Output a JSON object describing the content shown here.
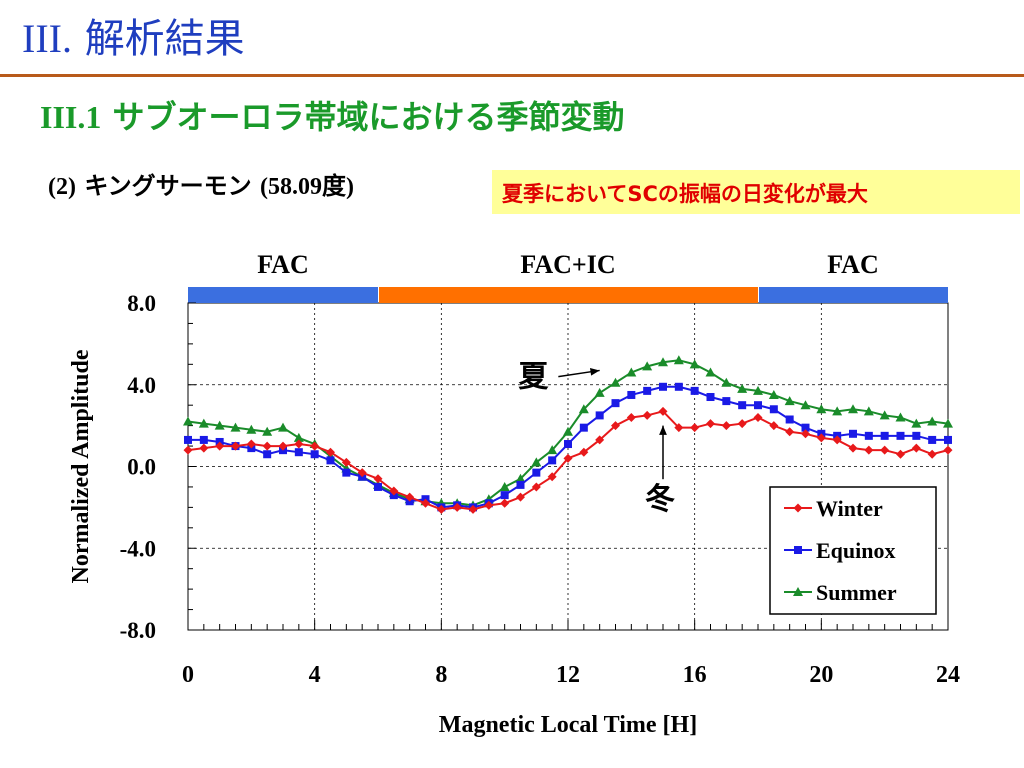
{
  "slide": {
    "title_num": "III.",
    "title_text": "解析結果",
    "subtitle_num": "III.1",
    "subtitle_text": "サブオーロラ帯域における季節変動",
    "station_prefix": "(2)",
    "station_name": "キングサーモン",
    "station_suffix": "(58.09度)",
    "highlight": "夏季においてSCの振幅の日変化が最大"
  },
  "colors": {
    "title": "#1f3ebf",
    "rule": "#b85a1a",
    "subtitle": "#1a9a2a",
    "highlight_bg": "#ffff99",
    "highlight_text": "#e00000",
    "band_fac": "#3b6fe0",
    "band_facic": "#ff7000",
    "winter": "#e8191b",
    "equinox": "#1a1ae6",
    "summer": "#1a8c2a"
  },
  "chart_data": {
    "type": "line",
    "xlabel": "Magnetic Local Time [H]",
    "ylabel": "Normalized Amplitude",
    "xlim": [
      0,
      24
    ],
    "ylim": [
      -8,
      8
    ],
    "xticks": [
      "0",
      "4",
      "8",
      "12",
      "16",
      "20",
      "24"
    ],
    "yticks": [
      "8.0",
      "4.0",
      "0.0",
      "-4.0",
      "-8.0"
    ],
    "grid": true,
    "legend_position": "bottom-right",
    "bands": [
      {
        "label": "FAC",
        "from": 0,
        "to": 6,
        "kind": "fac"
      },
      {
        "label": "FAC+IC",
        "from": 6,
        "to": 18,
        "kind": "facic"
      },
      {
        "label": "FAC",
        "from": 18,
        "to": 24,
        "kind": "fac"
      }
    ],
    "annotations": [
      {
        "text": "夏",
        "x": 11.0,
        "y": 4.4,
        "arrow_to": [
          13.0,
          4.7
        ]
      },
      {
        "text": "冬",
        "x": 15.0,
        "y": -1.6,
        "arrow_to": [
          15.0,
          2.0
        ]
      }
    ],
    "x": [
      0,
      0.5,
      1,
      1.5,
      2,
      2.5,
      3,
      3.5,
      4,
      4.5,
      5,
      5.5,
      6,
      6.5,
      7,
      7.5,
      8,
      8.5,
      9,
      9.5,
      10,
      10.5,
      11,
      11.5,
      12,
      12.5,
      13,
      13.5,
      14,
      14.5,
      15,
      15.5,
      16,
      16.5,
      17,
      17.5,
      18,
      18.5,
      19,
      19.5,
      20,
      20.5,
      21,
      21.5,
      22,
      22.5,
      23,
      23.5,
      24
    ],
    "series": [
      {
        "name": "Winter",
        "marker": "diamond",
        "color": "#e8191b",
        "values": [
          0.8,
          0.9,
          1.0,
          1.0,
          1.1,
          1.0,
          1.0,
          1.1,
          1.0,
          0.7,
          0.2,
          -0.3,
          -0.6,
          -1.2,
          -1.5,
          -1.8,
          -2.1,
          -2.0,
          -2.1,
          -1.9,
          -1.8,
          -1.5,
          -1.0,
          -0.5,
          0.4,
          0.7,
          1.3,
          2.0,
          2.4,
          2.5,
          2.7,
          1.9,
          1.9,
          2.1,
          2.0,
          2.1,
          2.4,
          2.0,
          1.7,
          1.6,
          1.4,
          1.3,
          0.9,
          0.8,
          0.8,
          0.6,
          0.9,
          0.6,
          0.8
        ]
      },
      {
        "name": "Equinox",
        "marker": "square",
        "color": "#1a1ae6",
        "values": [
          1.3,
          1.3,
          1.2,
          1.0,
          0.9,
          0.6,
          0.8,
          0.7,
          0.6,
          0.3,
          -0.3,
          -0.5,
          -1.0,
          -1.4,
          -1.7,
          -1.6,
          -2.0,
          -1.9,
          -2.0,
          -1.8,
          -1.4,
          -0.9,
          -0.3,
          0.3,
          1.1,
          1.9,
          2.5,
          3.1,
          3.5,
          3.7,
          3.9,
          3.9,
          3.7,
          3.4,
          3.2,
          3.0,
          3.0,
          2.8,
          2.3,
          1.9,
          1.6,
          1.5,
          1.6,
          1.5,
          1.5,
          1.5,
          1.5,
          1.3,
          1.3
        ]
      },
      {
        "name": "Summer",
        "marker": "triangle",
        "color": "#1a8c2a",
        "values": [
          2.2,
          2.1,
          2.0,
          1.9,
          1.8,
          1.7,
          1.9,
          1.4,
          1.1,
          0.5,
          -0.1,
          -0.5,
          -0.9,
          -1.3,
          -1.6,
          -1.7,
          -1.8,
          -1.8,
          -1.9,
          -1.6,
          -1.0,
          -0.6,
          0.2,
          0.8,
          1.7,
          2.8,
          3.6,
          4.1,
          4.6,
          4.9,
          5.1,
          5.2,
          5.0,
          4.6,
          4.1,
          3.8,
          3.7,
          3.5,
          3.2,
          3.0,
          2.8,
          2.7,
          2.8,
          2.7,
          2.5,
          2.4,
          2.1,
          2.2,
          2.1
        ]
      }
    ]
  }
}
